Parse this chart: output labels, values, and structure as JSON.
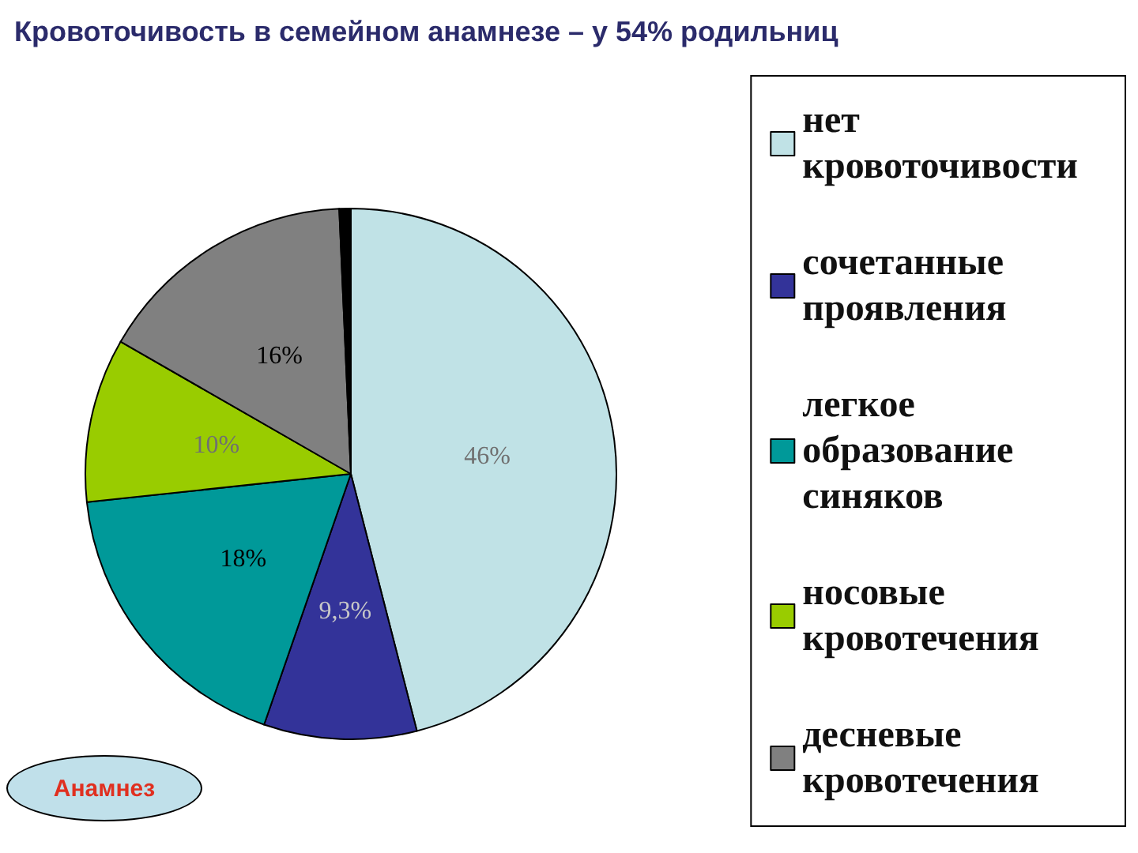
{
  "chart_data": {
    "type": "pie",
    "title": "Кровоточивость в семейном анамнезе – у 54% родильниц",
    "categories": [
      "нет кровоточивости",
      "сочетанные проявления",
      "легкое образование синяков",
      "носовые кровотечения",
      "десневые кровотечения",
      null
    ],
    "values": [
      46,
      9.3,
      18,
      10,
      16,
      0.7
    ],
    "colors": [
      "#c0e2e6",
      "#333399",
      "#009999",
      "#99cc00",
      "#808080",
      "#000000"
    ],
    "value_labels": [
      "46%",
      "9,3%",
      "18%",
      "10%",
      "16%",
      null
    ],
    "legend": "right",
    "annotations": [
      "Анамнез"
    ]
  }
}
